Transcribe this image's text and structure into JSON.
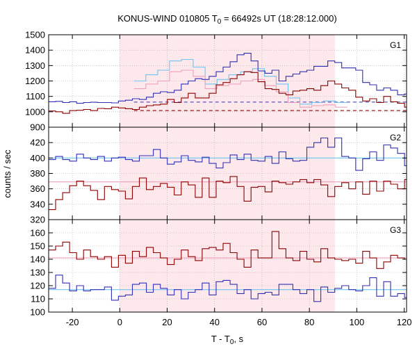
{
  "chart_data": {
    "type": "line",
    "title_main": "KONUS-WIND 010805 T",
    "title_sub": "0",
    "title_rest": " = 66492s UT (18:28:12.000)",
    "xlabel_main": "T - T",
    "xlabel_sub": "0",
    "xlabel_rest": ", s",
    "ylabel": "counts / sec",
    "xlim": [
      -30,
      121
    ],
    "x_ticks": [
      -20,
      0,
      20,
      40,
      60,
      80,
      100,
      120
    ],
    "highlight_interval": [
      0,
      90.8
    ],
    "colors": {
      "blue_main": "#2f2fb4",
      "red_main": "#8b0000",
      "light_blue": "#6fc4f0",
      "light_red": "#f0a0b8",
      "highlight": "#fde8ec",
      "grid": "#aaaaaa"
    },
    "panels": [
      {
        "label": "G1",
        "ylim": [
          900,
          1500
        ],
        "y_ticks": [
          900,
          1000,
          1100,
          1200,
          1300,
          1400,
          1500
        ],
        "background_levels": [
          {
            "series": "blue",
            "value": 1063,
            "x_start": 6
          },
          {
            "series": "red",
            "value": 1008,
            "x_start": 6
          }
        ],
        "series": [
          {
            "color_key": "blue_main",
            "x_start": -30,
            "step": 2.944,
            "values": [
              1065,
              1068,
              1060,
              1065,
              1055,
              1060,
              1062,
              1060,
              1060,
              1058,
              1070,
              1075,
              1085,
              1080,
              1095,
              1120,
              1130,
              1125,
              1140,
              1180,
              1200,
              1215,
              1210,
              1230,
              1260,
              1290,
              1325,
              1370,
              1380,
              1330,
              1265,
              1250,
              1270,
              1200,
              1230,
              1245,
              1260,
              1270,
              1295,
              1295,
              1330,
              1320,
              1285,
              1285,
              1270,
              1190,
              1175,
              1140,
              1155,
              1140,
              1110,
              1115,
              1100,
              1090,
              1100,
              1080,
              1085,
              1075,
              1070,
              1065,
              1070,
              1060,
              1070,
              1080,
              1060,
              1075,
              1075,
              1060,
              1070,
              1075,
              1095,
              1080,
              1090
            ]
          },
          {
            "color_key": "red_main",
            "x_start": -30,
            "step": 2.944,
            "values": [
              1005,
              1000,
              990,
              1008,
              1010,
              1015,
              1008,
              1022,
              1020,
              1030,
              1025,
              1020,
              1015,
              1030,
              1040,
              1045,
              1050,
              1080,
              1060,
              1090,
              1120,
              1090,
              1090,
              1120,
              1175,
              1190,
              1215,
              1240,
              1260,
              1255,
              1195,
              1150,
              1145,
              1120,
              1110,
              1135,
              1140,
              1150,
              1140,
              1170,
              1200,
              1180,
              1155,
              1140,
              1095,
              1070,
              1085,
              1060,
              1100,
              1065,
              1055,
              1030,
              1040,
              1050,
              1030,
              1040,
              1035,
              1040,
              1030,
              1035,
              1025,
              1040,
              1030,
              1030,
              1035,
              1025,
              1025,
              1030,
              1040,
              1025,
              1030,
              1025,
              1030
            ]
          },
          {
            "color_key": "light_blue",
            "x_start": 6.0,
            "step": 5.0,
            "values": [
              1200,
              1240,
              1270,
              1330,
              1340,
              1290,
              1180,
              1210,
              1240,
              1260,
              1280,
              1230,
              1180,
              1090,
              1050,
              1060,
              1070,
              1060
            ]
          },
          {
            "color_key": "light_red",
            "x_start": 6.0,
            "step": 5.0,
            "values": [
              1150,
              1180,
              1200,
              1260,
              1270,
              1230,
              1150,
              1170,
              1180,
              1200,
              1210,
              1170,
              1130,
              1060,
              1030,
              1040,
              1045,
              1030
            ]
          }
        ]
      },
      {
        "label": "G2",
        "ylim": [
          320,
          440
        ],
        "y_ticks": [
          320,
          340,
          360,
          380,
          400,
          420
        ],
        "background_levels": [
          {
            "series": "blue",
            "value": 400,
            "x_start": -30
          },
          {
            "series": "red",
            "value": 369,
            "x_start": -30
          }
        ],
        "series": [
          {
            "color_key": "blue_main",
            "x_start": -30,
            "step": 2.944,
            "values": [
              398,
              402,
              398,
              396,
              405,
              400,
              398,
              402,
              396,
              400,
              401,
              398,
              396,
              403,
              403,
              411,
              400,
              392,
              395,
              403,
              397,
              395,
              401,
              393,
              387,
              394,
              404,
              398,
              405,
              397,
              396,
              402,
              393,
              408,
              399,
              396,
              397,
              414,
              420,
              426,
              414,
              426,
              402,
              400,
              384,
              399,
              408,
              397,
              417,
              413,
              406,
              390,
              414,
              385,
              405,
              408,
              398,
              395,
              401,
              398,
              404,
              398,
              411,
              403,
              395,
              400,
              411,
              402,
              416,
              402,
              409,
              401,
              403
            ]
          },
          {
            "color_key": "red_main",
            "x_start": -30,
            "step": 2.944,
            "values": [
              333,
              346,
              355,
              364,
              370,
              364,
              358,
              346,
              363,
              359,
              357,
              347,
              363,
              374,
              359,
              363,
              367,
              362,
              352,
              369,
              365,
              349,
              374,
              349,
              370,
              368,
              376,
              363,
              344,
              362,
              363,
              356,
              370,
              368,
              366,
              369,
              372,
              368,
              372,
              365,
              350,
              363,
              368,
              360,
              369,
              353,
              370,
              357,
              370,
              366,
              360,
              372,
              366,
              361,
              363,
              373,
              368,
              363,
              352,
              366,
              357,
              349,
              362,
              370,
              362,
              362,
              354,
              357,
              366,
              363,
              373,
              380,
              370
            ]
          }
        ]
      },
      {
        "label": "G3",
        "ylim": [
          100,
          170
        ],
        "y_ticks": [
          100,
          110,
          120,
          130,
          140,
          150,
          160
        ],
        "background_levels": [
          {
            "series": "red",
            "value": 141,
            "x_start": -30
          },
          {
            "series": "blue",
            "value": 117,
            "x_start": -30
          }
        ],
        "series": [
          {
            "color_key": "red_main",
            "x_start": -30,
            "step": 2.944,
            "values": [
              147,
              150,
              153,
              145,
              140,
              147,
              142,
              140,
              142,
              134,
              143,
              137,
              146,
              142,
              149,
              145,
              141,
              136,
              140,
              147,
              142,
              139,
              148,
              149,
              147,
              152,
              145,
              140,
              134,
              147,
              141,
              141,
              161,
              148,
              141,
              139,
              146,
              140,
              138,
              148,
              141,
              140,
              139,
              140,
              137,
              146,
              141,
              133,
              138,
              143,
              141,
              140,
              145,
              153,
              141,
              148,
              136,
              145,
              141,
              139,
              141,
              144,
              142,
              138,
              141,
              137,
              149,
              141,
              143,
              152,
              140,
              144,
              140
            ]
          },
          {
            "color_key": "blue_main",
            "x_start": -30,
            "step": 2.944,
            "values": [
              118,
              128,
              122,
              116,
              120,
              116,
              117,
              117,
              119,
              109,
              112,
              113,
              121,
              122,
              115,
              121,
              118,
              113,
              117,
              110,
              115,
              117,
              122,
              113,
              123,
              124,
              121,
              114,
              117,
              110,
              114,
              115,
              113,
              121,
              121,
              117,
              114,
              117,
              108,
              119,
              115,
              118,
              120,
              117,
              116,
              120,
              126,
              112,
              123,
              112,
              114,
              111,
              118,
              110,
              120,
              110,
              115,
              114,
              112,
              116,
              121,
              114,
              120,
              121,
              118,
              124,
              116,
              117,
              110,
              112,
              106,
              124,
              120
            ]
          }
        ]
      }
    ]
  }
}
